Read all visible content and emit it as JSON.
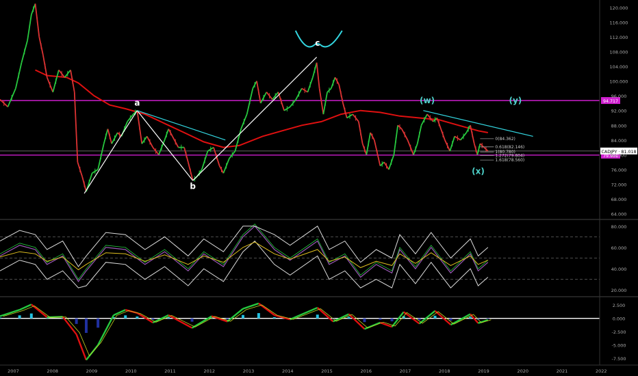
{
  "chart_data": {
    "type": "line",
    "symbol": "CADJPY",
    "last_price": 81.018,
    "price_label": "CADJPY · 81.018",
    "price_axis": {
      "ylim": [
        63.0,
        122.0
      ],
      "ticks": [
        "120.000",
        "116.000",
        "112.000",
        "108.000",
        "104.000",
        "100.000",
        "96.000",
        "92.000",
        "88.000",
        "84.000",
        "80.000",
        "76.000",
        "72.000",
        "68.000",
        "64.000"
      ]
    },
    "x_axis": {
      "xlim": [
        2006.8,
        2022.1
      ],
      "ticks": [
        "2007",
        "2008",
        "2009",
        "2010",
        "2011",
        "2012",
        "2013",
        "2014",
        "2015",
        "2016",
        "2017",
        "2018",
        "2019",
        "2020",
        "2021",
        "2022"
      ]
    },
    "price_series": [
      {
        "t": 2006.8,
        "p": 95
      },
      {
        "t": 2007.0,
        "p": 93
      },
      {
        "t": 2007.2,
        "p": 98
      },
      {
        "t": 2007.35,
        "p": 105
      },
      {
        "t": 2007.5,
        "p": 111
      },
      {
        "t": 2007.6,
        "p": 118
      },
      {
        "t": 2007.7,
        "p": 121
      },
      {
        "t": 2007.8,
        "p": 112
      },
      {
        "t": 2007.9,
        "p": 107
      },
      {
        "t": 2008.0,
        "p": 101
      },
      {
        "t": 2008.15,
        "p": 97
      },
      {
        "t": 2008.3,
        "p": 103
      },
      {
        "t": 2008.45,
        "p": 101
      },
      {
        "t": 2008.6,
        "p": 103
      },
      {
        "t": 2008.7,
        "p": 97
      },
      {
        "t": 2008.78,
        "p": 78
      },
      {
        "t": 2008.9,
        "p": 74
      },
      {
        "t": 2009.0,
        "p": 70
      },
      {
        "t": 2009.15,
        "p": 75
      },
      {
        "t": 2009.3,
        "p": 76
      },
      {
        "t": 2009.45,
        "p": 83
      },
      {
        "t": 2009.55,
        "p": 87
      },
      {
        "t": 2009.65,
        "p": 83
      },
      {
        "t": 2009.8,
        "p": 86
      },
      {
        "t": 2009.9,
        "p": 85
      },
      {
        "t": 2010.05,
        "p": 89
      },
      {
        "t": 2010.2,
        "p": 91
      },
      {
        "t": 2010.3,
        "p": 92
      },
      {
        "t": 2010.42,
        "p": 83
      },
      {
        "t": 2010.55,
        "p": 85
      },
      {
        "t": 2010.7,
        "p": 82
      },
      {
        "t": 2010.85,
        "p": 80
      },
      {
        "t": 2011.0,
        "p": 84
      },
      {
        "t": 2011.1,
        "p": 87
      },
      {
        "t": 2011.2,
        "p": 85
      },
      {
        "t": 2011.35,
        "p": 82
      },
      {
        "t": 2011.5,
        "p": 82
      },
      {
        "t": 2011.6,
        "p": 78
      },
      {
        "t": 2011.72,
        "p": 73
      },
      {
        "t": 2011.82,
        "p": 74
      },
      {
        "t": 2011.95,
        "p": 76
      },
      {
        "t": 2012.1,
        "p": 81
      },
      {
        "t": 2012.25,
        "p": 82
      },
      {
        "t": 2012.4,
        "p": 77
      },
      {
        "t": 2012.5,
        "p": 75
      },
      {
        "t": 2012.65,
        "p": 79
      },
      {
        "t": 2012.8,
        "p": 81
      },
      {
        "t": 2012.95,
        "p": 87
      },
      {
        "t": 2013.1,
        "p": 91
      },
      {
        "t": 2013.25,
        "p": 98
      },
      {
        "t": 2013.35,
        "p": 100
      },
      {
        "t": 2013.45,
        "p": 94
      },
      {
        "t": 2013.6,
        "p": 97
      },
      {
        "t": 2013.75,
        "p": 95
      },
      {
        "t": 2013.9,
        "p": 97
      },
      {
        "t": 2014.05,
        "p": 92
      },
      {
        "t": 2014.2,
        "p": 93
      },
      {
        "t": 2014.35,
        "p": 95
      },
      {
        "t": 2014.5,
        "p": 98
      },
      {
        "t": 2014.65,
        "p": 97
      },
      {
        "t": 2014.78,
        "p": 101
      },
      {
        "t": 2014.88,
        "p": 105
      },
      {
        "t": 2014.95,
        "p": 98
      },
      {
        "t": 2015.05,
        "p": 91
      },
      {
        "t": 2015.15,
        "p": 97
      },
      {
        "t": 2015.25,
        "p": 98
      },
      {
        "t": 2015.35,
        "p": 101
      },
      {
        "t": 2015.45,
        "p": 99
      },
      {
        "t": 2015.55,
        "p": 94
      },
      {
        "t": 2015.65,
        "p": 90
      },
      {
        "t": 2015.8,
        "p": 91
      },
      {
        "t": 2015.95,
        "p": 89
      },
      {
        "t": 2016.05,
        "p": 83
      },
      {
        "t": 2016.15,
        "p": 80
      },
      {
        "t": 2016.25,
        "p": 86
      },
      {
        "t": 2016.35,
        "p": 84
      },
      {
        "t": 2016.5,
        "p": 77
      },
      {
        "t": 2016.6,
        "p": 78
      },
      {
        "t": 2016.72,
        "p": 76
      },
      {
        "t": 2016.85,
        "p": 80
      },
      {
        "t": 2016.95,
        "p": 88
      },
      {
        "t": 2017.05,
        "p": 87
      },
      {
        "t": 2017.2,
        "p": 84
      },
      {
        "t": 2017.35,
        "p": 80
      },
      {
        "t": 2017.45,
        "p": 83
      },
      {
        "t": 2017.55,
        "p": 88
      },
      {
        "t": 2017.7,
        "p": 91
      },
      {
        "t": 2017.85,
        "p": 89
      },
      {
        "t": 2017.95,
        "p": 90
      },
      {
        "t": 2018.05,
        "p": 87
      },
      {
        "t": 2018.15,
        "p": 84
      },
      {
        "t": 2018.28,
        "p": 81
      },
      {
        "t": 2018.4,
        "p": 85
      },
      {
        "t": 2018.55,
        "p": 84
      },
      {
        "t": 2018.7,
        "p": 86
      },
      {
        "t": 2018.8,
        "p": 88
      },
      {
        "t": 2018.9,
        "p": 83
      },
      {
        "t": 2018.98,
        "p": 80
      },
      {
        "t": 2019.05,
        "p": 83
      },
      {
        "t": 2019.15,
        "p": 82
      },
      {
        "t": 2019.25,
        "p": 81
      }
    ],
    "moving_average": [
      {
        "t": 2007.7,
        "p": 103
      },
      {
        "t": 2008.0,
        "p": 101.5
      },
      {
        "t": 2008.5,
        "p": 101
      },
      {
        "t": 2008.8,
        "p": 99.5
      },
      {
        "t": 2009.2,
        "p": 96
      },
      {
        "t": 2009.6,
        "p": 93.5
      },
      {
        "t": 2010.0,
        "p": 92.5
      },
      {
        "t": 2010.5,
        "p": 91
      },
      {
        "t": 2011.0,
        "p": 88.5
      },
      {
        "t": 2011.5,
        "p": 86
      },
      {
        "t": 2012.0,
        "p": 83.5
      },
      {
        "t": 2012.5,
        "p": 82
      },
      {
        "t": 2012.9,
        "p": 82.5
      },
      {
        "t": 2013.5,
        "p": 85
      },
      {
        "t": 2014.0,
        "p": 86.5
      },
      {
        "t": 2014.5,
        "p": 88
      },
      {
        "t": 2015.0,
        "p": 89
      },
      {
        "t": 2015.5,
        "p": 91
      },
      {
        "t": 2016.0,
        "p": 92
      },
      {
        "t": 2016.5,
        "p": 91.5
      },
      {
        "t": 2017.0,
        "p": 90.5
      },
      {
        "t": 2017.5,
        "p": 90
      },
      {
        "t": 2018.0,
        "p": 89.5
      },
      {
        "t": 2018.5,
        "p": 88
      },
      {
        "t": 2019.0,
        "p": 86.5
      },
      {
        "t": 2019.25,
        "p": 86
      }
    ],
    "annotations": {
      "wave_labels": [
        {
          "text": "a",
          "t": 2010.3,
          "p": 93.3,
          "color": "#ffffff"
        },
        {
          "text": "b",
          "t": 2011.72,
          "p": 70.7,
          "color": "#ffffff"
        },
        {
          "text": "c",
          "t": 2014.9,
          "p": 109.6,
          "color": "#ffffff"
        },
        {
          "text": "(w)",
          "t": 2017.7,
          "p": 94,
          "color": "#4dd0c8"
        },
        {
          "text": "(x)",
          "t": 2019.0,
          "p": 74.8,
          "color": "#4dd0c8"
        },
        {
          "text": "(y)",
          "t": 2019.95,
          "p": 94,
          "color": "#4dd0c8"
        }
      ],
      "white_lines": [
        [
          {
            "t": 2008.95,
            "p": 69.5
          },
          {
            "t": 2010.3,
            "p": 92
          }
        ],
        [
          {
            "t": 2010.3,
            "p": 92
          },
          {
            "t": 2011.72,
            "p": 73
          }
        ],
        [
          {
            "t": 2011.72,
            "p": 73
          },
          {
            "t": 2014.88,
            "p": 106.5
          }
        ]
      ],
      "cyan_lines": [
        [
          {
            "t": 2010.3,
            "p": 92
          },
          {
            "t": 2012.55,
            "p": 84
          }
        ],
        [
          {
            "t": 2017.6,
            "p": 92
          },
          {
            "t": 2020.4,
            "p": 85
          }
        ]
      ],
      "magenta_levels": [
        {
          "p": 94.717,
          "label": "94.717"
        },
        {
          "p": 79.901,
          "label": "79.901"
        }
      ],
      "gray_level": 81.018,
      "fib_levels": [
        {
          "label": "0(84.362)",
          "p": 84.362
        },
        {
          "label": "0.618(82.146)",
          "p": 82.146
        },
        {
          "label": "1(80.780)",
          "p": 80.78
        },
        {
          "label": "1.272(79.804)",
          "p": 79.804
        },
        {
          "label": "1.618(78.560)",
          "p": 78.56
        }
      ],
      "fib_range": [
        2019.05,
        2019.4
      ]
    },
    "rsi": {
      "ylim": [
        15,
        85
      ],
      "ticks": [
        "80.000",
        "60.000",
        "40.000",
        "20.000"
      ],
      "dashed_levels": [
        70,
        50,
        30
      ],
      "series": [
        {
          "t": 2006.8,
          "v": 52
        },
        {
          "t": 2007.3,
          "v": 62
        },
        {
          "t": 2007.7,
          "v": 58
        },
        {
          "t": 2008.0,
          "v": 44
        },
        {
          "t": 2008.4,
          "v": 52
        },
        {
          "t": 2008.8,
          "v": 28
        },
        {
          "t": 2009.0,
          "v": 38
        },
        {
          "t": 2009.5,
          "v": 60
        },
        {
          "t": 2010.0,
          "v": 58
        },
        {
          "t": 2010.5,
          "v": 44
        },
        {
          "t": 2011.0,
          "v": 56
        },
        {
          "t": 2011.6,
          "v": 38
        },
        {
          "t": 2012.0,
          "v": 54
        },
        {
          "t": 2012.5,
          "v": 42
        },
        {
          "t": 2013.0,
          "v": 70
        },
        {
          "t": 2013.3,
          "v": 80
        },
        {
          "t": 2013.8,
          "v": 58
        },
        {
          "t": 2014.2,
          "v": 48
        },
        {
          "t": 2014.9,
          "v": 66
        },
        {
          "t": 2015.2,
          "v": 44
        },
        {
          "t": 2015.6,
          "v": 52
        },
        {
          "t": 2016.0,
          "v": 32
        },
        {
          "t": 2016.4,
          "v": 44
        },
        {
          "t": 2016.8,
          "v": 36
        },
        {
          "t": 2017.0,
          "v": 58
        },
        {
          "t": 2017.4,
          "v": 40
        },
        {
          "t": 2017.8,
          "v": 60
        },
        {
          "t": 2018.3,
          "v": 36
        },
        {
          "t": 2018.8,
          "v": 54
        },
        {
          "t": 2019.0,
          "v": 38
        },
        {
          "t": 2019.25,
          "v": 46
        }
      ]
    },
    "macd": {
      "ylim": [
        -8.5,
        3.8
      ],
      "ticks": [
        "2.500",
        "0.000",
        "-2.500",
        "-5.000",
        "-7.500"
      ],
      "macd_line": [
        {
          "t": 2006.8,
          "v": 0.4
        },
        {
          "t": 2007.3,
          "v": 1.6
        },
        {
          "t": 2007.6,
          "v": 2.6
        },
        {
          "t": 2008.0,
          "v": 0.2
        },
        {
          "t": 2008.4,
          "v": 0.3
        },
        {
          "t": 2008.75,
          "v": -3.0
        },
        {
          "t": 2009.0,
          "v": -7.8
        },
        {
          "t": 2009.3,
          "v": -5.0
        },
        {
          "t": 2009.7,
          "v": 0.6
        },
        {
          "t": 2010.0,
          "v": 1.6
        },
        {
          "t": 2010.3,
          "v": 1.0
        },
        {
          "t": 2010.7,
          "v": -0.8
        },
        {
          "t": 2011.1,
          "v": 0.6
        },
        {
          "t": 2011.7,
          "v": -1.8
        },
        {
          "t": 2012.2,
          "v": 0.4
        },
        {
          "t": 2012.6,
          "v": -0.6
        },
        {
          "t": 2013.0,
          "v": 1.8
        },
        {
          "t": 2013.4,
          "v": 2.8
        },
        {
          "t": 2013.8,
          "v": 0.6
        },
        {
          "t": 2014.2,
          "v": -0.2
        },
        {
          "t": 2014.9,
          "v": 2.0
        },
        {
          "t": 2015.3,
          "v": -0.6
        },
        {
          "t": 2015.7,
          "v": 0.8
        },
        {
          "t": 2016.1,
          "v": -2.0
        },
        {
          "t": 2016.5,
          "v": -0.8
        },
        {
          "t": 2016.8,
          "v": -1.6
        },
        {
          "t": 2017.1,
          "v": 1.2
        },
        {
          "t": 2017.5,
          "v": -1.0
        },
        {
          "t": 2017.9,
          "v": 1.4
        },
        {
          "t": 2018.3,
          "v": -1.2
        },
        {
          "t": 2018.8,
          "v": 0.8
        },
        {
          "t": 2019.0,
          "v": -0.9
        },
        {
          "t": 2019.25,
          "v": -0.3
        }
      ]
    }
  }
}
